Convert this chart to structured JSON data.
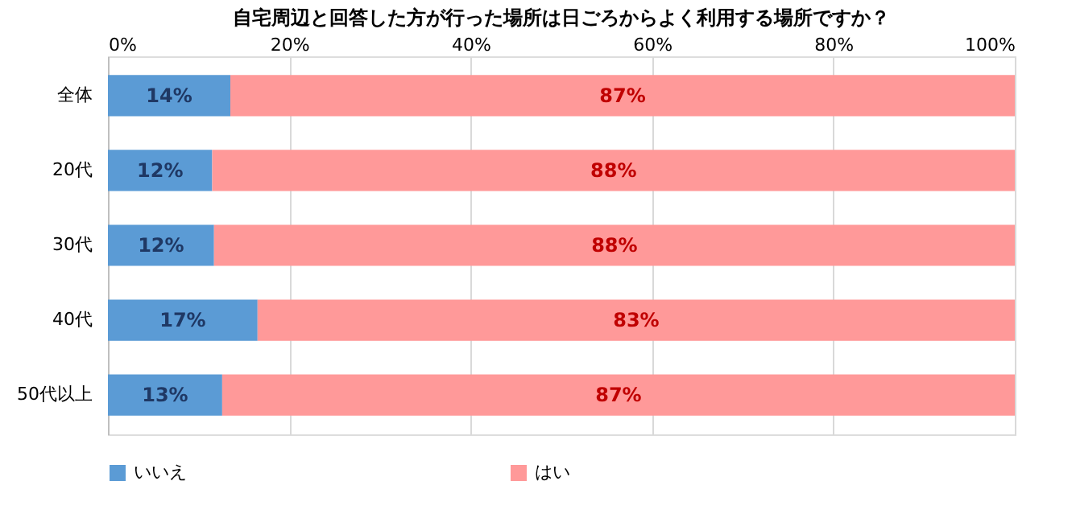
{
  "chart_data": {
    "type": "bar",
    "orientation": "horizontal",
    "stacked": true,
    "title": "自宅周辺と回答した方が行った場所は日ごろからよく利用する場所ですか？",
    "categories": [
      "全体",
      "20代",
      "30代",
      "40代",
      "50代以上"
    ],
    "series": [
      {
        "name": "いいえ",
        "color": "#5b9bd5",
        "values": [
          13.5,
          11.5,
          11.7,
          16.5,
          12.6
        ],
        "value_labels": [
          "14%",
          "12%",
          "12%",
          "17%",
          "13%"
        ]
      },
      {
        "name": "はい",
        "color": "#ff9999",
        "values": [
          86.5,
          88.5,
          88.3,
          83.5,
          87.4
        ],
        "value_labels": [
          "87%",
          "88%",
          "88%",
          "83%",
          "87%"
        ]
      }
    ],
    "xlim": [
      0,
      100
    ],
    "xticks": [
      {
        "value": 0,
        "label": "0%"
      },
      {
        "value": 20,
        "label": "20%"
      },
      {
        "value": 40,
        "label": "40%"
      },
      {
        "value": 60,
        "label": "60%"
      },
      {
        "value": 80,
        "label": "80%"
      },
      {
        "value": 100,
        "label": "100%"
      }
    ],
    "grid": "x",
    "legend": "bottom"
  }
}
